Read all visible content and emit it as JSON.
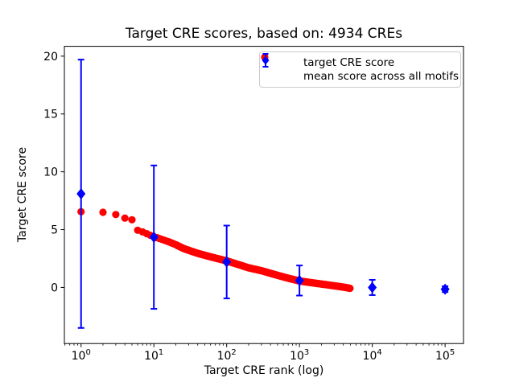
{
  "figure": {
    "title": "Target CRE scores, based on: 4934 CREs",
    "xlabel": "Target CRE rank (log)",
    "ylabel": "Target CRE score",
    "colors": {
      "target_series": "#ff0000",
      "mean_series": "#0000ff",
      "axis": "#000000",
      "legend_border": "#cccccc",
      "background": "#ffffff"
    },
    "legend": {
      "items": [
        {
          "label": "target CRE score",
          "marker": "red-dot"
        },
        {
          "label": "mean score across all motifs",
          "marker": "blue-diamond-errorbar"
        }
      ]
    }
  },
  "chart_data": {
    "type": "scatter",
    "title": "Target CRE scores, based on: 4934 CREs",
    "xlabel": "Target CRE rank (log)",
    "ylabel": "Target CRE score",
    "x_scale": "log",
    "xlim": [
      0.59,
      179000
    ],
    "ylim": [
      -4.85,
      20.85
    ],
    "x_ticks": [
      {
        "value": 1,
        "base": "10",
        "exp": "0"
      },
      {
        "value": 10,
        "base": "10",
        "exp": "1"
      },
      {
        "value": 100,
        "base": "10",
        "exp": "2"
      },
      {
        "value": 1000,
        "base": "10",
        "exp": "3"
      },
      {
        "value": 10000,
        "base": "10",
        "exp": "4"
      },
      {
        "value": 100000,
        "base": "10",
        "exp": "5"
      }
    ],
    "y_ticks": [
      0,
      5,
      10,
      15,
      20
    ],
    "grid": false,
    "legend_position": "upper right",
    "series": [
      {
        "name": "target CRE score",
        "type": "scatter",
        "marker": "circle",
        "color": "#ff0000",
        "rank_range": [
          1,
          4934
        ],
        "anchor_points": [
          [
            1,
            6.55
          ],
          [
            2,
            6.5
          ],
          [
            3,
            6.3
          ],
          [
            4,
            6.0
          ],
          [
            5,
            5.85
          ],
          [
            6,
            4.95
          ],
          [
            7,
            4.8
          ],
          [
            8,
            4.65
          ],
          [
            9,
            4.5
          ],
          [
            10,
            4.4
          ],
          [
            13,
            4.15
          ],
          [
            16,
            3.95
          ],
          [
            20,
            3.7
          ],
          [
            26,
            3.35
          ],
          [
            40,
            2.95
          ],
          [
            60,
            2.65
          ],
          [
            80,
            2.45
          ],
          [
            100,
            2.3
          ],
          [
            150,
            1.95
          ],
          [
            200,
            1.7
          ],
          [
            300,
            1.45
          ],
          [
            500,
            1.05
          ],
          [
            700,
            0.8
          ],
          [
            1000,
            0.56
          ],
          [
            1600,
            0.38
          ],
          [
            2600,
            0.2
          ],
          [
            4000,
            0.03
          ],
          [
            4934,
            -0.07
          ]
        ]
      },
      {
        "name": "mean score across all motifs",
        "type": "errorbar",
        "marker": "diamond",
        "color": "#0000ff",
        "x": [
          1,
          10,
          100,
          1000,
          10000,
          100000
        ],
        "y": [
          8.1,
          4.35,
          2.2,
          0.6,
          0.0,
          -0.15
        ],
        "yerr": [
          11.6,
          6.2,
          3.15,
          1.3,
          0.66,
          0.25
        ]
      }
    ]
  }
}
